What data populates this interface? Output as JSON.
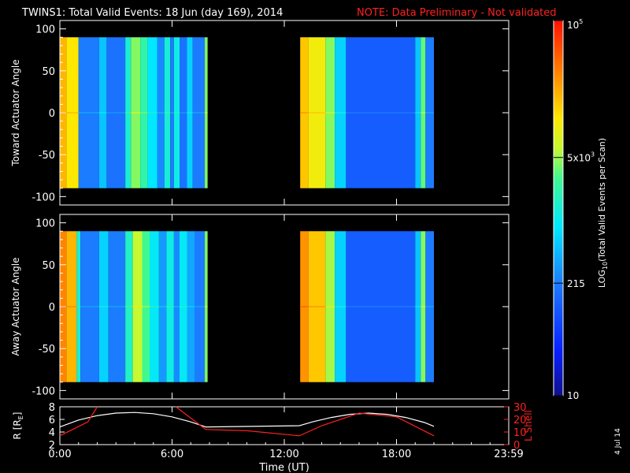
{
  "title": "TWINS1: Total Valid Events: 18 Jun (day 169), 2014",
  "note": "NOTE: Data Preliminary - Not validated",
  "footer_date": "4 Jul 14",
  "chart_data": [
    {
      "type": "heatmap",
      "name": "toward",
      "ylabel": "Toward Actuator Angle",
      "ylim": [
        -110,
        110
      ],
      "yticks": [
        100,
        50,
        0,
        -50,
        -100
      ],
      "data_ylim": [
        -90,
        90
      ],
      "xlim": [
        0,
        24
      ],
      "data_segments": [
        [
          0.0,
          7.9
        ],
        [
          12.85,
          20.0
        ]
      ],
      "columns": [
        {
          "t0": 0.0,
          "t1": 0.35,
          "level": 0.8
        },
        {
          "t0": 0.35,
          "t1": 1.0,
          "level": 0.74
        },
        {
          "t0": 1.0,
          "t1": 2.1,
          "level": 0.3
        },
        {
          "t0": 2.1,
          "t1": 2.5,
          "level": 0.4
        },
        {
          "t0": 2.5,
          "t1": 3.5,
          "level": 0.28
        },
        {
          "t0": 3.5,
          "t1": 3.8,
          "level": 0.5
        },
        {
          "t0": 3.8,
          "t1": 4.3,
          "level": 0.62
        },
        {
          "t0": 4.3,
          "t1": 4.7,
          "level": 0.55
        },
        {
          "t0": 4.7,
          "t1": 5.2,
          "level": 0.45
        },
        {
          "t0": 5.2,
          "t1": 5.6,
          "level": 0.32
        },
        {
          "t0": 5.6,
          "t1": 5.9,
          "level": 0.5
        },
        {
          "t0": 5.9,
          "t1": 6.1,
          "level": 0.3
        },
        {
          "t0": 6.1,
          "t1": 6.4,
          "level": 0.48
        },
        {
          "t0": 6.4,
          "t1": 6.8,
          "level": 0.28
        },
        {
          "t0": 6.8,
          "t1": 7.1,
          "level": 0.42
        },
        {
          "t0": 7.1,
          "t1": 7.75,
          "level": 0.3
        },
        {
          "t0": 7.75,
          "t1": 7.9,
          "level": 0.62
        },
        {
          "t0": 12.85,
          "t1": 13.3,
          "level": 0.78
        },
        {
          "t0": 13.3,
          "t1": 14.2,
          "level": 0.72
        },
        {
          "t0": 14.2,
          "t1": 14.7,
          "level": 0.62
        },
        {
          "t0": 14.7,
          "t1": 15.3,
          "level": 0.42
        },
        {
          "t0": 15.3,
          "t1": 19.0,
          "level": 0.24
        },
        {
          "t0": 19.0,
          "t1": 19.3,
          "level": 0.4
        },
        {
          "t0": 19.3,
          "t1": 19.55,
          "level": 0.6
        },
        {
          "t0": 19.55,
          "t1": 20.0,
          "level": 0.3
        }
      ]
    },
    {
      "type": "heatmap",
      "name": "away",
      "ylabel": "Away Actuator Angle",
      "ylim": [
        -110,
        110
      ],
      "yticks": [
        100,
        50,
        0,
        -50,
        -100
      ],
      "data_ylim": [
        -90,
        90
      ],
      "xlim": [
        0,
        24
      ],
      "data_segments": [
        [
          0.0,
          7.9
        ],
        [
          12.85,
          20.0
        ]
      ],
      "columns": [
        {
          "t0": 0.0,
          "t1": 0.35,
          "level": 0.86
        },
        {
          "t0": 0.35,
          "t1": 0.9,
          "level": 0.8
        },
        {
          "t0": 0.9,
          "t1": 1.1,
          "level": 0.5
        },
        {
          "t0": 1.1,
          "t1": 2.1,
          "level": 0.3
        },
        {
          "t0": 2.1,
          "t1": 2.6,
          "level": 0.42
        },
        {
          "t0": 2.6,
          "t1": 3.5,
          "level": 0.3
        },
        {
          "t0": 3.5,
          "t1": 3.9,
          "level": 0.52
        },
        {
          "t0": 3.9,
          "t1": 4.4,
          "level": 0.66
        },
        {
          "t0": 4.4,
          "t1": 4.8,
          "level": 0.58
        },
        {
          "t0": 4.8,
          "t1": 5.3,
          "level": 0.46
        },
        {
          "t0": 5.3,
          "t1": 5.7,
          "level": 0.34
        },
        {
          "t0": 5.7,
          "t1": 6.1,
          "level": 0.48
        },
        {
          "t0": 6.1,
          "t1": 6.4,
          "level": 0.32
        },
        {
          "t0": 6.4,
          "t1": 6.8,
          "level": 0.46
        },
        {
          "t0": 6.8,
          "t1": 7.2,
          "level": 0.36
        },
        {
          "t0": 7.2,
          "t1": 7.75,
          "level": 0.3
        },
        {
          "t0": 7.75,
          "t1": 7.9,
          "level": 0.62
        },
        {
          "t0": 12.85,
          "t1": 13.3,
          "level": 0.84
        },
        {
          "t0": 13.3,
          "t1": 14.2,
          "level": 0.78
        },
        {
          "t0": 14.2,
          "t1": 14.7,
          "level": 0.64
        },
        {
          "t0": 14.7,
          "t1": 15.3,
          "level": 0.42
        },
        {
          "t0": 15.3,
          "t1": 19.0,
          "level": 0.24
        },
        {
          "t0": 19.0,
          "t1": 19.3,
          "level": 0.4
        },
        {
          "t0": 19.3,
          "t1": 19.55,
          "level": 0.62
        },
        {
          "t0": 19.55,
          "t1": 20.0,
          "level": 0.3
        }
      ]
    },
    {
      "type": "line",
      "name": "orbit",
      "xlabel": "Time (UT)",
      "xlim": [
        0,
        24
      ],
      "xticks": [
        {
          "t": 0,
          "label": "0:00"
        },
        {
          "t": 6,
          "label": "6:00"
        },
        {
          "t": 12,
          "label": "12:00"
        },
        {
          "t": 18,
          "label": "18:00"
        },
        {
          "t": 24,
          "label": "23:59"
        }
      ],
      "ylabel_left": "R [R",
      "ylabel_left_sub": "E",
      "ylabel_left_end": "]",
      "ylim_left": [
        2,
        8
      ],
      "yticks_left": [
        8,
        6,
        4,
        2
      ],
      "ylabel_right": "L Shell",
      "ylim_right": [
        0,
        30
      ],
      "yticks_right": [
        30,
        20,
        10,
        0
      ],
      "series": [
        {
          "axis": "left",
          "color": "#ffffff",
          "points": [
            [
              0.0,
              4.8
            ],
            [
              1.0,
              5.9
            ],
            [
              2.0,
              6.6
            ],
            [
              3.0,
              7.0
            ],
            [
              4.0,
              7.1
            ],
            [
              5.0,
              6.9
            ],
            [
              6.0,
              6.4
            ],
            [
              7.0,
              5.6
            ],
            [
              7.8,
              4.8
            ],
            [
              12.8,
              5.0
            ],
            [
              13.5,
              5.6
            ],
            [
              14.5,
              6.3
            ],
            [
              15.5,
              6.8
            ],
            [
              16.5,
              7.0
            ],
            [
              17.5,
              6.8
            ],
            [
              18.5,
              6.3
            ],
            [
              19.5,
              5.5
            ],
            [
              20.0,
              4.9
            ]
          ]
        },
        {
          "axis": "right",
          "color": "#ff2020",
          "points": [
            [
              0.0,
              7
            ],
            [
              1.5,
              18
            ],
            [
              2.0,
              32
            ],
            [
              2.1,
              null
            ],
            [
              6.1,
              null
            ],
            [
              6.2,
              32
            ],
            [
              7.8,
              12
            ],
            [
              10.0,
              11
            ],
            [
              12.8,
              7
            ],
            [
              14.0,
              15
            ],
            [
              16.0,
              25
            ],
            [
              18.0,
              22
            ],
            [
              20.0,
              7
            ]
          ]
        }
      ]
    }
  ],
  "colorbar": {
    "label_pre": "LOG",
    "label_sub": "10",
    "label_post": "(Total Valid Events per Scan)",
    "ticks": [
      {
        "frac": 1.0,
        "label": "10",
        "sup": "5"
      },
      {
        "frac": 0.635,
        "label": "5x10",
        "sup": "3"
      },
      {
        "frac": 0.3,
        "label": "215",
        "sup": ""
      },
      {
        "frac": 0.0,
        "label": "10",
        "sup": ""
      }
    ]
  }
}
